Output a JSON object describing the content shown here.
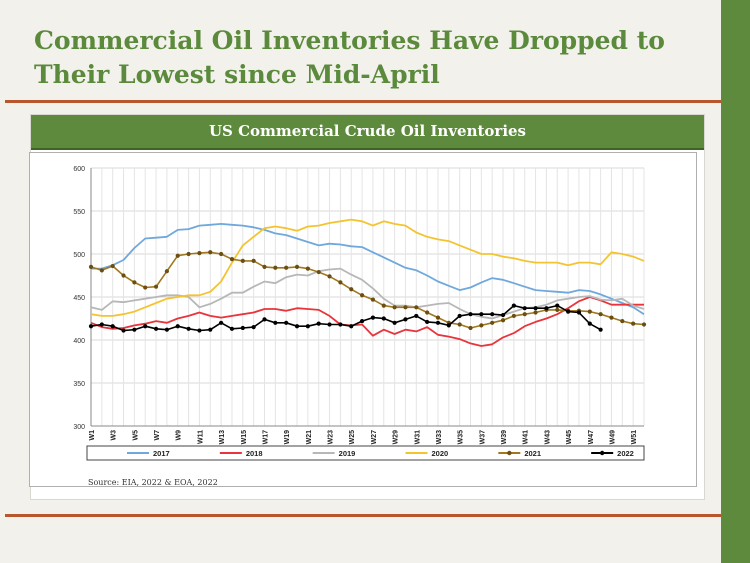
{
  "slide": {
    "title_line1": "Commercial Oil Inventories Have Dropped to",
    "title_line2": "Their Lowest since Mid-April",
    "source": "Source: EIA, 2022 & EOA, 2022"
  },
  "colors": {
    "accent_green": "#5e8a3e",
    "title_green": "#5b8a3c",
    "rule_brown": "#b8572c"
  },
  "chart_data": {
    "type": "line",
    "title": "US Commercial Crude Oil Inventories",
    "xlabel": "",
    "ylabel": "",
    "ylim": [
      300,
      600
    ],
    "yticks": [
      300,
      350,
      400,
      450,
      500,
      550,
      600
    ],
    "x": [
      1,
      2,
      3,
      4,
      5,
      6,
      7,
      8,
      9,
      10,
      11,
      12,
      13,
      14,
      15,
      16,
      17,
      18,
      19,
      20,
      21,
      22,
      23,
      24,
      25,
      26,
      27,
      28,
      29,
      30,
      31,
      32,
      33,
      34,
      35,
      36,
      37,
      38,
      39,
      40,
      41,
      42,
      43,
      44,
      45,
      46,
      47,
      48,
      49,
      50,
      51,
      52
    ],
    "xtick_labels": [
      "W1",
      "W3",
      "W5",
      "W7",
      "W9",
      "W11",
      "W13",
      "W15",
      "W17",
      "W19",
      "W21",
      "W23",
      "W25",
      "W27",
      "W29",
      "W31",
      "W33",
      "W35",
      "W37",
      "W39",
      "W41",
      "W43",
      "W45",
      "W47",
      "W49",
      "W51"
    ],
    "grid": true,
    "legend_position": "bottom",
    "series": [
      {
        "name": "2017",
        "color": "#6fa8dc",
        "marker": false,
        "values": [
          483,
          483,
          487,
          493,
          507,
          518,
          519,
          520,
          528,
          529,
          533,
          534,
          535,
          534,
          533,
          531,
          528,
          524,
          522,
          518,
          514,
          510,
          512,
          511,
          509,
          508,
          502,
          496,
          490,
          484,
          481,
          475,
          468,
          463,
          458,
          461,
          467,
          472,
          470,
          466,
          462,
          458,
          457,
          456,
          455,
          458,
          457,
          453,
          448,
          443,
          438,
          430
        ]
      },
      {
        "name": "2018",
        "color": "#e8343a",
        "marker": false,
        "values": [
          420,
          415,
          413,
          414,
          417,
          419,
          422,
          420,
          425,
          428,
          432,
          428,
          426,
          428,
          430,
          432,
          436,
          436,
          434,
          437,
          436,
          435,
          428,
          418,
          417,
          418,
          405,
          412,
          407,
          412,
          410,
          415,
          406,
          404,
          401,
          396,
          393,
          395,
          403,
          408,
          416,
          421,
          425,
          430,
          437,
          445,
          450,
          446,
          441,
          441,
          441,
          441
        ]
      },
      {
        "name": "2019",
        "color": "#b7b7b7",
        "marker": false,
        "values": [
          438,
          435,
          445,
          444,
          446,
          448,
          450,
          452,
          452,
          450,
          438,
          442,
          448,
          455,
          455,
          462,
          468,
          466,
          473,
          476,
          475,
          480,
          482,
          483,
          476,
          470,
          460,
          448,
          440,
          440,
          438,
          440,
          442,
          443,
          436,
          430,
          427,
          425,
          429,
          433,
          437,
          438,
          441,
          446,
          448,
          450,
          451,
          447,
          446,
          448,
          440,
          436
        ]
      },
      {
        "name": "2020",
        "color": "#f4c430",
        "marker": false,
        "values": [
          430,
          428,
          428,
          430,
          433,
          438,
          443,
          448,
          450,
          452,
          452,
          456,
          468,
          490,
          510,
          520,
          530,
          532,
          530,
          527,
          532,
          533,
          536,
          538,
          540,
          538,
          533,
          538,
          535,
          533,
          525,
          520,
          517,
          515,
          510,
          505,
          500,
          500,
          497,
          495,
          492,
          490,
          490,
          490,
          487,
          490,
          490,
          488,
          502,
          500,
          497,
          492
        ]
      },
      {
        "name": "2021",
        "color": "#a0781e",
        "marker": true,
        "marker_color": "#6b4e10",
        "values": [
          485,
          481,
          486,
          475,
          467,
          461,
          462,
          480,
          498,
          500,
          501,
          502,
          500,
          494,
          492,
          492,
          485,
          484,
          484,
          485,
          483,
          479,
          474,
          467,
          459,
          452,
          447,
          440,
          438,
          438,
          438,
          432,
          426,
          420,
          418,
          414,
          417,
          420,
          423,
          428,
          430,
          432,
          435,
          435,
          434,
          434,
          433,
          430,
          426,
          422,
          419,
          418
        ]
      },
      {
        "name": "2022",
        "color": "#000000",
        "marker": true,
        "marker_color": "#000000",
        "values": [
          416,
          418,
          416,
          411,
          412,
          416,
          413,
          412,
          416,
          413,
          411,
          412,
          420,
          413,
          414,
          415,
          424,
          420,
          420,
          416,
          416,
          419,
          418,
          418,
          416,
          422,
          426,
          425,
          420,
          424,
          428,
          421,
          420,
          417,
          428,
          430,
          430,
          430,
          429,
          440,
          437,
          437,
          437,
          440,
          433,
          432,
          419,
          412,
          null,
          null,
          null,
          null
        ]
      }
    ]
  }
}
